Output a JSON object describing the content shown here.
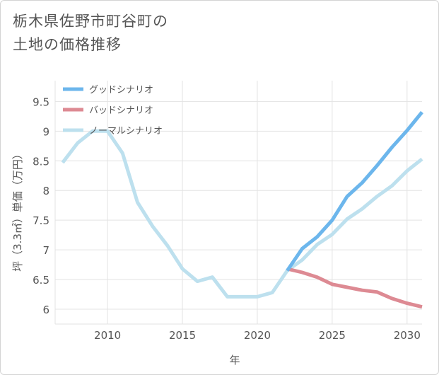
{
  "title": {
    "line1": "栃木県佐野市町谷町の",
    "line2": "土地の価格推移"
  },
  "chart_data": {
    "type": "line",
    "xlabel": "年",
    "ylabel": "坪（3.3㎡）単価（万円）",
    "xlim": [
      2006.5,
      2031
    ],
    "ylim": [
      5.75,
      9.85
    ],
    "xticks": [
      2010,
      2015,
      2020,
      2025,
      2030
    ],
    "yticks": [
      6,
      6.5,
      7,
      7.5,
      8,
      8.5,
      9,
      9.5
    ],
    "ytick_labels": [
      "6",
      "6.5",
      "7",
      "7.5",
      "8",
      "8.5",
      "9",
      "9.5"
    ],
    "grid": true,
    "legend_position": "top-left",
    "series": [
      {
        "name": "グッドシナリオ",
        "color": "#6cb6ec",
        "points": [
          [
            2022,
            6.65
          ],
          [
            2023,
            7.02
          ],
          [
            2024,
            7.22
          ],
          [
            2025,
            7.5
          ],
          [
            2026,
            7.9
          ],
          [
            2027,
            8.13
          ],
          [
            2028,
            8.42
          ],
          [
            2029,
            8.73
          ],
          [
            2030,
            9.01
          ],
          [
            2031,
            9.32
          ]
        ]
      },
      {
        "name": "バッドシナリオ",
        "color": "#dd8a93",
        "points": [
          [
            2022,
            6.68
          ],
          [
            2023,
            6.62
          ],
          [
            2024,
            6.54
          ],
          [
            2025,
            6.42
          ],
          [
            2026,
            6.37
          ],
          [
            2027,
            6.32
          ],
          [
            2028,
            6.29
          ],
          [
            2029,
            6.18
          ],
          [
            2030,
            6.1
          ],
          [
            2031,
            6.04
          ]
        ]
      },
      {
        "name": "ノーマルシナリオ",
        "color": "#bde0ee",
        "points": [
          [
            2007,
            8.47
          ],
          [
            2008,
            8.8
          ],
          [
            2009,
            9.0
          ],
          [
            2010,
            9.0
          ],
          [
            2011,
            8.63
          ],
          [
            2012,
            7.8
          ],
          [
            2013,
            7.4
          ],
          [
            2014,
            7.07
          ],
          [
            2015,
            6.68
          ],
          [
            2016,
            6.47
          ],
          [
            2017,
            6.54
          ],
          [
            2018,
            6.21
          ],
          [
            2019,
            6.21
          ],
          [
            2020,
            6.21
          ],
          [
            2021,
            6.28
          ],
          [
            2022,
            6.65
          ],
          [
            2023,
            6.83
          ],
          [
            2024,
            7.09
          ],
          [
            2025,
            7.26
          ],
          [
            2026,
            7.52
          ],
          [
            2027,
            7.69
          ],
          [
            2028,
            7.9
          ],
          [
            2029,
            8.08
          ],
          [
            2030,
            8.33
          ],
          [
            2031,
            8.53
          ]
        ]
      }
    ]
  }
}
